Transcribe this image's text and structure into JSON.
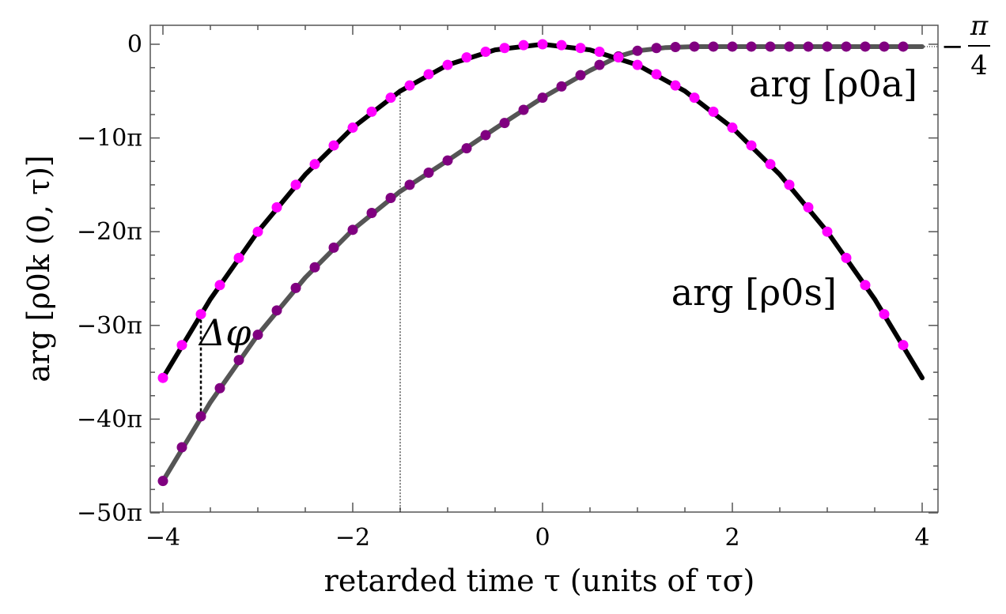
{
  "chart_data": {
    "type": "line",
    "xlabel": "retarded time τ (units of τσ)",
    "ylabel": "arg [ρ0k (0, τ)]",
    "xlim": [
      -4.2,
      4.2
    ],
    "ylim": [
      -50,
      2
    ],
    "x_ticks": [
      {
        "value": -4,
        "label": "−4"
      },
      {
        "value": -2,
        "label": "−2"
      },
      {
        "value": 0,
        "label": "0"
      },
      {
        "value": 2,
        "label": "2"
      },
      {
        "value": 4,
        "label": "4"
      }
    ],
    "y_ticks": [
      {
        "value": 0,
        "label": "0"
      },
      {
        "value": -10,
        "label": "−10π"
      },
      {
        "value": -20,
        "label": "−20π"
      },
      {
        "value": -30,
        "label": "−30π"
      },
      {
        "value": -40,
        "label": "−40π"
      },
      {
        "value": -50,
        "label": "−50π"
      }
    ],
    "series": [
      {
        "name": "arg [ρ0s]",
        "line_color": "#000000",
        "marker_color": "#ff00ff",
        "x": [
          -4.0,
          -3.8,
          -3.6,
          -3.4,
          -3.2,
          -3.0,
          -2.8,
          -2.6,
          -2.4,
          -2.2,
          -2.0,
          -1.8,
          -1.6,
          -1.4,
          -1.2,
          -1.0,
          -0.8,
          -0.6,
          -0.4,
          -0.2,
          0.0,
          0.2,
          0.4,
          0.6,
          0.8,
          1.0,
          1.2,
          1.4,
          1.6,
          1.8,
          2.0,
          2.2,
          2.4,
          2.6,
          2.8,
          3.0,
          3.2,
          3.4,
          3.6,
          3.8
        ],
        "y": [
          -35.6,
          -32.1,
          -28.8,
          -25.7,
          -22.8,
          -20.0,
          -17.4,
          -15.0,
          -12.8,
          -10.8,
          -8.9,
          -7.2,
          -5.7,
          -4.4,
          -3.2,
          -2.2,
          -1.4,
          -0.8,
          -0.4,
          -0.1,
          0.0,
          -0.1,
          -0.4,
          -0.8,
          -1.4,
          -2.2,
          -3.2,
          -4.4,
          -5.7,
          -7.2,
          -8.9,
          -10.8,
          -12.8,
          -15.0,
          -17.4,
          -20.0,
          -22.8,
          -25.7,
          -28.8,
          -32.1
        ],
        "line_x": [
          -4.0,
          -3.5,
          -3.0,
          -2.5,
          -2.0,
          -1.5,
          -1.0,
          -0.5,
          0.0,
          0.5,
          1.0,
          1.5,
          2.0,
          2.5,
          3.0,
          3.5,
          4.0
        ],
        "line_y": [
          -35.6,
          -27.2,
          -20.0,
          -13.9,
          -8.9,
          -5.0,
          -2.2,
          -0.6,
          0.0,
          -0.6,
          -2.2,
          -5.0,
          -8.9,
          -13.9,
          -20.0,
          -27.2,
          -35.6
        ]
      },
      {
        "name": "arg [ρ0a]",
        "line_color": "#555555",
        "marker_color": "#800080",
        "x": [
          -4.0,
          -3.8,
          -3.6,
          -3.4,
          -3.2,
          -3.0,
          -2.8,
          -2.6,
          -2.4,
          -2.2,
          -2.0,
          -1.8,
          -1.6,
          -1.4,
          -1.2,
          -1.0,
          -0.8,
          -0.6,
          -0.4,
          -0.2,
          0.0,
          0.2,
          0.4,
          0.6,
          0.8,
          1.0,
          1.2,
          1.4,
          1.6,
          1.8,
          2.0,
          2.2,
          2.4,
          2.6,
          2.8,
          3.0,
          3.2,
          3.4,
          3.6,
          3.8
        ],
        "y": [
          -46.6,
          -43.0,
          -39.7,
          -36.7,
          -33.7,
          -31.0,
          -28.4,
          -26.0,
          -23.8,
          -21.7,
          -19.8,
          -18.0,
          -16.4,
          -15.0,
          -13.7,
          -12.4,
          -11.1,
          -9.7,
          -8.4,
          -7.0,
          -5.7,
          -4.5,
          -3.3,
          -2.2,
          -1.3,
          -0.7,
          -0.4,
          -0.3,
          -0.25,
          -0.25,
          -0.25,
          -0.25,
          -0.25,
          -0.25,
          -0.25,
          -0.25,
          -0.25,
          -0.25,
          -0.25,
          -0.25
        ],
        "line_x": [
          -4.0,
          -3.5,
          -3.0,
          -2.5,
          -2.0,
          -1.5,
          -1.0,
          -0.5,
          0.0,
          0.5,
          0.8,
          1.0,
          1.3,
          1.6,
          2.0,
          3.0,
          4.0
        ],
        "line_y": [
          -46.6,
          -38.2,
          -31.0,
          -24.9,
          -19.8,
          -15.7,
          -12.4,
          -9.0,
          -5.7,
          -2.8,
          -1.3,
          -0.7,
          -0.35,
          -0.25,
          -0.25,
          -0.25,
          -0.25
        ]
      }
    ],
    "annotations": {
      "rho_a_label": "arg [ρ0a]",
      "rho_s_label": "arg [ρ0s]",
      "delta_phi": "Δφ",
      "pi_minus": "−",
      "pi_num": "π",
      "pi_den": "4",
      "asymptote_y": -0.25,
      "delta_phi_x": -3.6,
      "delta_phi_y1": -28.8,
      "delta_phi_y2": -39.7,
      "vline_x": -1.5,
      "vline_y": -5.0
    }
  }
}
